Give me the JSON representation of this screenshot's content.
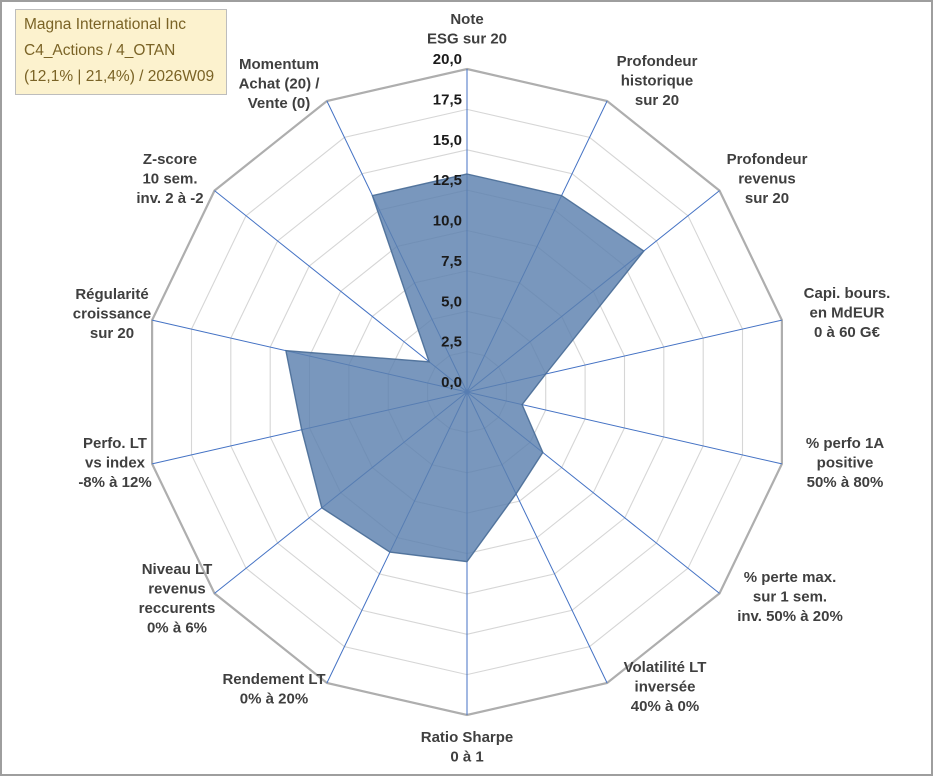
{
  "title_box": {
    "line1": "Magna International Inc",
    "line2": "C4_Actions / 4_OTAN",
    "line3": "(12,1% | 21,4%) / 2026W09"
  },
  "chart_data": {
    "type": "radar",
    "title": "Magna International Inc",
    "subtitle": "C4_Actions / 4_OTAN (12,1% | 21,4%) / 2026W09",
    "categories": [
      [
        "Note",
        "ESG sur 20"
      ],
      [
        "Profondeur",
        "historique",
        "sur 20"
      ],
      [
        "Profondeur",
        "revenus",
        "sur 20"
      ],
      [
        "Capi. bours.",
        "en MdEUR",
        "0 à 60 G€"
      ],
      [
        "% perfo 1A",
        "positive",
        "50% à 80%"
      ],
      [
        "% perte max.",
        "sur 1 sem.",
        "inv. 50% à 20%"
      ],
      [
        "Volatilité LT",
        "inversée",
        "40% à 0%"
      ],
      [
        "Ratio Sharpe",
        "0 à 1"
      ],
      [
        "Rendement LT",
        "0% à 20%"
      ],
      [
        "Niveau LT",
        "revenus",
        "reccurents",
        "0% à 6%"
      ],
      [
        "Perfo. LT",
        "vs index",
        "-8% à 12%"
      ],
      [
        "Régularité",
        "croissance",
        "sur 20"
      ],
      [
        "Z-score",
        "10 sem.",
        "inv. 2 à -2"
      ],
      [
        "Momentum",
        "Achat (20) /",
        "Vente (0)"
      ]
    ],
    "series": [
      {
        "name": "Magna International Inc",
        "values": [
          13.5,
          13.5,
          14,
          5,
          3.5,
          6,
          7,
          10.5,
          11,
          11.5,
          10.5,
          11.5,
          3,
          13.5
        ]
      }
    ],
    "rmin": 0,
    "rmax": 20,
    "rstep": 2.5,
    "tick_labels": [
      "0,0",
      "2,5",
      "5,0",
      "7,5",
      "10,0",
      "12,5",
      "15,0",
      "17,5",
      "20,0"
    ],
    "grid": true,
    "legend_position": "none",
    "colors": {
      "fill": "#5b80af",
      "fill_stroke": "#486b96",
      "grid_line": "#d6d6d6",
      "outer_ring": "#aeaeae",
      "spoke": "#4472c4",
      "tick_text": "#1a1a1a",
      "label_text": "#3f3f3f",
      "title_bg": "#fcf2ce",
      "title_text": "#7a6326"
    }
  }
}
